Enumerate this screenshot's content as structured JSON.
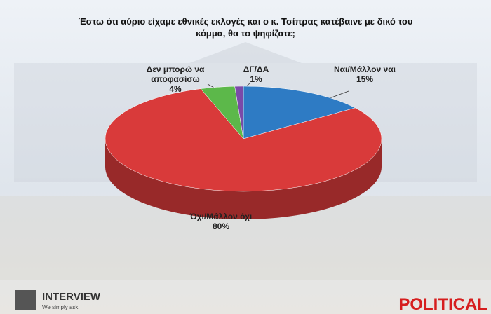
{
  "chart_data": {
    "type": "pie",
    "title": "Έστω ότι αύριο είχαμε εθνικές εκλογές και ο κ. Τσίπρας κατέβαινε με δικό του κόμμα, θα το ψηφίζατε;",
    "categories": [
      "Ναι/Μάλλον ναι",
      "Όχι/Μάλλον όχι",
      "Δεν μπορώ να αποφασίσω",
      "ΔΓ/ΔΑ"
    ],
    "values": [
      15,
      80,
      4,
      1
    ],
    "value_labels": [
      "15%",
      "80%",
      "4%",
      "1%"
    ],
    "colors": [
      "#2e7bc4",
      "#d93a3a",
      "#5cb84a",
      "#7b4aa8"
    ]
  },
  "branding": {
    "left_logo": "INTERVIEW",
    "left_tagline": "We simply ask!",
    "right_logo": "POLITICAL"
  }
}
